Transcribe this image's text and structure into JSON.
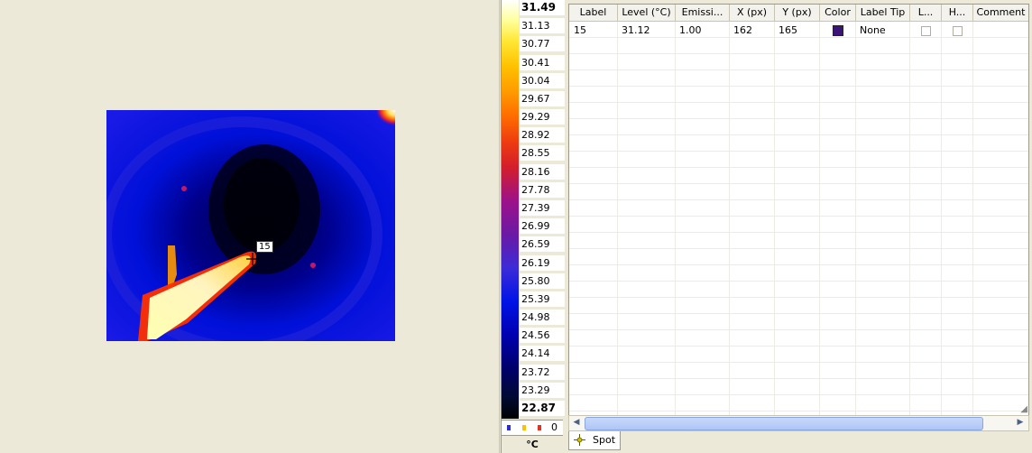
{
  "thermal_image": {
    "spot_label": "15"
  },
  "scale": {
    "max": "31.49",
    "ticks": [
      "31.13",
      "30.77",
      "30.41",
      "30.04",
      "29.67",
      "29.29",
      "28.92",
      "28.55",
      "28.16",
      "27.78",
      "27.39",
      "26.99",
      "26.59",
      "26.19",
      "25.80",
      "25.39",
      "24.98",
      "24.56",
      "24.14",
      "23.72",
      "23.29"
    ],
    "min": "22.87",
    "legend_count": "0",
    "unit": "°C",
    "legend_colors": [
      "#2b2bd8",
      "#ffc000",
      "#e83020"
    ]
  },
  "table": {
    "headers": [
      "Label",
      "Level (°C)",
      "Emissi...",
      "X (px)",
      "Y (px)",
      "Color",
      "Label Tip",
      "L...",
      "H...",
      "Comment"
    ],
    "rows": [
      {
        "label": "15",
        "level": "31.12",
        "emissivity": "1.00",
        "x": "162",
        "y": "165",
        "color": "#3c1478",
        "label_tip": "None"
      }
    ]
  },
  "tabs": {
    "spot": "Spot"
  },
  "icons": {
    "spot_tab": "crosshair-icon",
    "scroll_left": "scroll-left-icon",
    "scroll_right": "scroll-right-icon",
    "resize_grip": "resize-grip-icon"
  }
}
